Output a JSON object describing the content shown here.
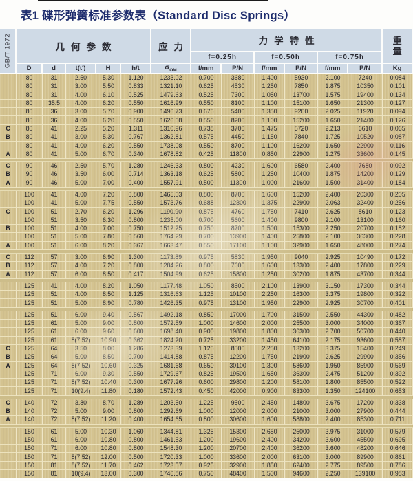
{
  "colors": {
    "title_color": "#1e2d6d",
    "header_bg": "#cfdae6",
    "row_bg": "#d4c390",
    "grid_line": "#ece2bd",
    "gap_bg": "#cdbd8a",
    "text_color": "#26262e"
  },
  "title": "表1 碟形弹簧标准参数表（Standard Disc Springs）",
  "standard_label": "GB/T 1972",
  "header": {
    "geometry_group": "几何参数",
    "stress_group": "应力",
    "mechanical_group": "力学特性",
    "weight_group": "重量",
    "kg_label": "Kg",
    "deflection_levels": [
      "f=0.25h",
      "f=0.50h",
      "f=0.75h"
    ],
    "sub_columns": [
      "D",
      "d",
      "t(t′)",
      "H",
      "h/t",
      {
        "sym": "σ",
        "sub": "OM"
      },
      "f/mm",
      "P/N",
      "f/mm",
      "P/N",
      "f/mm",
      "P/N",
      "Kg"
    ]
  },
  "col_keys": [
    "class",
    "D",
    "d",
    "t",
    "H",
    "h_t",
    "sigma_om",
    "f_025h",
    "P_025h",
    "f_050h",
    "P_050h",
    "f_075h",
    "P_075h",
    "kg"
  ],
  "rows": [
    [
      "",
      "80",
      "31",
      "2.50",
      "5.30",
      "1.120",
      "1233.02",
      "0.700",
      "3680",
      "1.400",
      "5930",
      "2.100",
      "7240",
      "0.084"
    ],
    [
      "",
      "80",
      "31",
      "3.00",
      "5.50",
      "0.833",
      "1321.10",
      "0.625",
      "4530",
      "1.250",
      "7850",
      "1.875",
      "10350",
      "0.101"
    ],
    [
      "",
      "80",
      "31",
      "4.00",
      "6.10",
      "0.525",
      "1479.63",
      "0.525",
      "7300",
      "1.050",
      "13700",
      "1.575",
      "19400",
      "0.134"
    ],
    [
      "",
      "80",
      "35.5",
      "4.00",
      "6.20",
      "0.550",
      "1616.99",
      "0.550",
      "8100",
      "1.100",
      "15100",
      "1.650",
      "21300",
      "0.127"
    ],
    [
      "",
      "80",
      "36",
      "3.00",
      "5.70",
      "0.900",
      "1496.73",
      "0.675",
      "5400",
      "1.350",
      "9200",
      "2.025",
      "11920",
      "0.094"
    ],
    [
      "",
      "80",
      "36",
      "4.00",
      "6.20",
      "0.550",
      "1626.08",
      "0.550",
      "8200",
      "1.100",
      "15200",
      "1.650",
      "21400",
      "0.126"
    ],
    [
      "C",
      "80",
      "41",
      "2.25",
      "5.20",
      "1.311",
      "1310.96",
      "0.738",
      "3700",
      "1.475",
      "5720",
      "2.213",
      "6610",
      "0.065"
    ],
    [
      "B",
      "80",
      "41",
      "3.00",
      "5.30",
      "0.767",
      "1362.81",
      "0.575",
      "4450",
      "1.150",
      "7840",
      "1.725",
      "10520",
      "0.087"
    ],
    [
      "",
      "80",
      "41",
      "4.00",
      "6.20",
      "0.550",
      "1738.08",
      "0.550",
      "8700",
      "1.100",
      "16200",
      "1.650",
      "22900",
      "0.116"
    ],
    [
      "A",
      "80",
      "41",
      "5.00",
      "6.70",
      "0.340",
      "1678.82",
      "0.425",
      "11800",
      "0.850",
      "22900",
      "1.275",
      "33600",
      "0.145"
    ],
    null,
    [
      "C",
      "90",
      "46",
      "2.50",
      "5.70",
      "1.280",
      "1246.33",
      "0.800",
      "4230",
      "1.600",
      "6580",
      "2.400",
      "7680",
      "0.092"
    ],
    [
      "B",
      "90",
      "46",
      "3.50",
      "6.00",
      "0.714",
      "1363.18",
      "0.625",
      "5800",
      "1.250",
      "10400",
      "1.875",
      "14200",
      "0.129"
    ],
    [
      "A",
      "90",
      "46",
      "5.00",
      "7.00",
      "0.400",
      "1557.91",
      "0.500",
      "11300",
      "1.000",
      "21600",
      "1.500",
      "31400",
      "0.184"
    ],
    null,
    [
      "",
      "100",
      "41",
      "4.00",
      "7.20",
      "0.800",
      "1465.03",
      "0.800",
      "8700",
      "1.600",
      "15200",
      "2.400",
      "20300",
      "0.205"
    ],
    [
      "",
      "100",
      "41",
      "5.00",
      "7.75",
      "0.550",
      "1573.76",
      "0.688",
      "12300",
      "1.375",
      "22900",
      "2.063",
      "32400",
      "0.256"
    ],
    [
      "C",
      "100",
      "51",
      "2.70",
      "6.20",
      "1.296",
      "1190.90",
      "0.875",
      "4760",
      "1.750",
      "7410",
      "2.625",
      "8610",
      "0.123"
    ],
    [
      "",
      "100",
      "51",
      "3.50",
      "6.30",
      "0.800",
      "1235.00",
      "0.700",
      "5600",
      "1.400",
      "9800",
      "2.100",
      "13100",
      "0.160"
    ],
    [
      "B",
      "100",
      "51",
      "4.00",
      "7.00",
      "0.750",
      "1512.25",
      "0.750",
      "8700",
      "1.500",
      "15300",
      "2.250",
      "20700",
      "0.182"
    ],
    [
      "",
      "100",
      "51",
      "5.00",
      "7.80",
      "0.560",
      "1764.29",
      "0.700",
      "13900",
      "1.400",
      "25800",
      "2.100",
      "36300",
      "0.228"
    ],
    [
      "A",
      "100",
      "51",
      "6.00",
      "8.20",
      "0.367",
      "1663.47",
      "0.550",
      "17100",
      "1.100",
      "32900",
      "1.650",
      "48000",
      "0.274"
    ],
    null,
    [
      "C",
      "112",
      "57",
      "3.00",
      "6.90",
      "1.300",
      "1173.89",
      "0.975",
      "5830",
      "1.950",
      "9040",
      "2.925",
      "10490",
      "0.172"
    ],
    [
      "B",
      "112",
      "57",
      "4.00",
      "7.20",
      "0.800",
      "1284.26",
      "0.800",
      "7600",
      "1.600",
      "13300",
      "2.400",
      "17800",
      "0.229"
    ],
    [
      "A",
      "112",
      "57",
      "6.00",
      "8.50",
      "0.417",
      "1504.99",
      "0.625",
      "15800",
      "1.250",
      "30200",
      "1.875",
      "43700",
      "0.344"
    ],
    null,
    [
      "",
      "125",
      "41",
      "4.00",
      "8.20",
      "1.050",
      "1177.48",
      "1.050",
      "8500",
      "2.100",
      "13900",
      "3.150",
      "17300",
      "0.344"
    ],
    [
      "",
      "125",
      "51",
      "4.00",
      "8.50",
      "1.125",
      "1316.63",
      "1.125",
      "10100",
      "2.250",
      "16300",
      "3.375",
      "19800",
      "0.322"
    ],
    [
      "",
      "125",
      "51",
      "5.00",
      "8.90",
      "0.780",
      "1426.35",
      "0.975",
      "13100",
      "1.950",
      "22900",
      "2.925",
      "30700",
      "0.401"
    ],
    null,
    [
      "",
      "125",
      "51",
      "6.00",
      "9.40",
      "0.567",
      "1492.18",
      "0.850",
      "17000",
      "1.700",
      "31500",
      "2.550",
      "44300",
      "0.482"
    ],
    [
      "",
      "125",
      "61",
      "5.00",
      "9.00",
      "0.800",
      "1572.59",
      "1.000",
      "14600",
      "2.000",
      "25500",
      "3.000",
      "34000",
      "0.367"
    ],
    [
      "",
      "125",
      "61",
      "6.00",
      "9.60",
      "0.600",
      "1698.40",
      "0.900",
      "19800",
      "1.800",
      "36300",
      "2.700",
      "50700",
      "0.440"
    ],
    [
      "",
      "125",
      "61",
      "8(7.52)",
      "10.90",
      "0.362",
      "1824.20",
      "0.725",
      "33200",
      "1.450",
      "64100",
      "2.175",
      "93600",
      "0.587"
    ],
    [
      "C",
      "125",
      "64",
      "3.50",
      "8.00",
      "1.286",
      "1273.39",
      "1.125",
      "8500",
      "2.250",
      "13200",
      "3.375",
      "15400",
      "0.249"
    ],
    [
      "B",
      "125",
      "64",
      "5.00",
      "8.50",
      "0.700",
      "1414.88",
      "0.875",
      "12200",
      "1.750",
      "21900",
      "2.625",
      "29900",
      "0.356"
    ],
    [
      "A",
      "125",
      "64",
      "8(7.52)",
      "10.60",
      "0.325",
      "1681.68",
      "0.650",
      "30100",
      "1.300",
      "58600",
      "1.950",
      "85900",
      "0.569"
    ],
    [
      "",
      "125",
      "71",
      "6.00",
      "9.30",
      "0.550",
      "1729.67",
      "0.825",
      "19500",
      "1.650",
      "36300",
      "2.475",
      "51200",
      "0.392"
    ],
    [
      "",
      "125",
      "71",
      "8(7.52)",
      "10.40",
      "0.300",
      "1677.26",
      "0.600",
      "29800",
      "1.200",
      "58100",
      "1.800",
      "85500",
      "0.522"
    ],
    [
      "",
      "125",
      "71",
      "10(9.4)",
      "11.80",
      "0.180",
      "1572.43",
      "0.450",
      "42000",
      "0.900",
      "83300",
      "1.350",
      "124100",
      "0.653"
    ],
    null,
    [
      "C",
      "140",
      "72",
      "3.80",
      "8.70",
      "1.289",
      "1203.50",
      "1.225",
      "9500",
      "2.450",
      "14800",
      "3.675",
      "17200",
      "0.338"
    ],
    [
      "B",
      "140",
      "72",
      "5.00",
      "9.00",
      "0.800",
      "1292.69",
      "1.000",
      "12000",
      "2.000",
      "21000",
      "3.000",
      "27900",
      "0.444"
    ],
    [
      "A",
      "140",
      "72",
      "8(7.52)",
      "11.20",
      "0.400",
      "1654.65",
      "0.800",
      "30600",
      "1.600",
      "58800",
      "2.400",
      "85300",
      "0.711"
    ],
    null,
    [
      "",
      "150",
      "61",
      "5.00",
      "10.30",
      "1.060",
      "1344.81",
      "1.325",
      "15300",
      "2.650",
      "25000",
      "3.975",
      "31000",
      "0.579"
    ],
    [
      "",
      "150",
      "61",
      "6.00",
      "10.80",
      "0.800",
      "1461.53",
      "1.200",
      "19600",
      "2.400",
      "34200",
      "3.600",
      "45500",
      "0.695"
    ],
    [
      "",
      "150",
      "71",
      "6.00",
      "10.80",
      "0.800",
      "1548.30",
      "1.200",
      "20700",
      "2.400",
      "36200",
      "3.600",
      "48200",
      "0.646"
    ],
    [
      "",
      "150",
      "71",
      "8(7.52)",
      "12.00",
      "0.500",
      "1720.33",
      "1.000",
      "33600",
      "2.000",
      "63100",
      "3.000",
      "89900",
      "0.861"
    ],
    [
      "",
      "150",
      "81",
      "8(7.52)",
      "11.70",
      "0.462",
      "1723.57",
      "0.925",
      "32900",
      "1.850",
      "62400",
      "2.775",
      "89500",
      "0.786"
    ],
    [
      "",
      "150",
      "81",
      "10(9.4)",
      "13.00",
      "0.300",
      "1746.86",
      "0.750",
      "48400",
      "1.500",
      "94600",
      "2.250",
      "139100",
      "0.983"
    ]
  ]
}
